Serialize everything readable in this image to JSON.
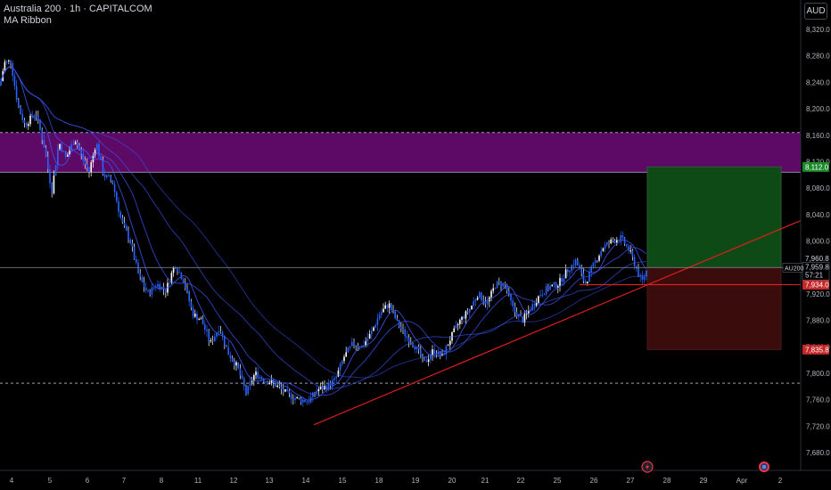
{
  "header": {
    "title": "Australia 200 · 1h · CAPITALCOM",
    "indicator": "MA Ribbon",
    "currency": "AUD"
  },
  "colors": {
    "background": "#000000",
    "candle": "#ffffff",
    "candle_alt": "#2962ff",
    "ma_line": "#3d5afe",
    "zone": "#5c0a66",
    "target_zone": "#0d4a15",
    "stop_zone": "#3a0c0c",
    "trendline": "#e01e1e",
    "entry_line": "#e01e1e",
    "current_price_line": "#787b86",
    "target_label": "#1b8a2a",
    "stop_label": "#c62828"
  },
  "chart_data": {
    "type": "line",
    "symbol": "AU200",
    "interval": "1h",
    "y_ticks": [
      7680,
      7720,
      7760,
      7800,
      7840,
      7880,
      7920,
      7960,
      8000,
      8040,
      8080,
      8120,
      8160,
      8200,
      8240,
      8280,
      8320
    ],
    "y_tick_labels": [
      "7,680.0",
      "7,720.0",
      "7,760.0",
      "7,800.0",
      "7,840.0",
      "7,880.0",
      "7,920.0",
      "7,960.0",
      "8,000.0",
      "8,040.0",
      "8,080.0",
      "8,120.0",
      "8,160.0",
      "8,200.0",
      "8,240.0",
      "8,280.0",
      "8,320.0"
    ],
    "x_tick_labels": [
      "4",
      "5",
      "6",
      "7",
      "8",
      "11",
      "12",
      "13",
      "14",
      "15",
      "18",
      "19",
      "20",
      "21",
      "22",
      "25",
      "26",
      "27",
      "28",
      "29",
      "Apr",
      "2"
    ],
    "ylim": [
      7660,
      8340
    ],
    "price_path": [
      [
        0,
        8235
      ],
      [
        5,
        8270
      ],
      [
        12,
        8272
      ],
      [
        20,
        8205
      ],
      [
        28,
        8175
      ],
      [
        40,
        8195
      ],
      [
        50,
        8140
      ],
      [
        58,
        8075
      ],
      [
        66,
        8150
      ],
      [
        74,
        8125
      ],
      [
        84,
        8155
      ],
      [
        94,
        8120
      ],
      [
        100,
        8105
      ],
      [
        108,
        8150
      ],
      [
        116,
        8100
      ],
      [
        126,
        8090
      ],
      [
        136,
        8030
      ],
      [
        146,
        8000
      ],
      [
        156,
        7945
      ],
      [
        166,
        7920
      ],
      [
        176,
        7935
      ],
      [
        186,
        7925
      ],
      [
        196,
        7965
      ],
      [
        206,
        7940
      ],
      [
        216,
        7890
      ],
      [
        226,
        7880
      ],
      [
        236,
        7845
      ],
      [
        246,
        7870
      ],
      [
        256,
        7830
      ],
      [
        266,
        7810
      ],
      [
        276,
        7770
      ],
      [
        286,
        7800
      ],
      [
        296,
        7790
      ],
      [
        306,
        7785
      ],
      [
        316,
        7775
      ],
      [
        326,
        7765
      ],
      [
        336,
        7760
      ],
      [
        346,
        7758
      ],
      [
        356,
        7775
      ],
      [
        366,
        7780
      ],
      [
        376,
        7790
      ],
      [
        386,
        7825
      ],
      [
        396,
        7845
      ],
      [
        406,
        7840
      ],
      [
        416,
        7860
      ],
      [
        426,
        7890
      ],
      [
        436,
        7905
      ],
      [
        446,
        7875
      ],
      [
        456,
        7855
      ],
      [
        466,
        7840
      ],
      [
        476,
        7815
      ],
      [
        486,
        7835
      ],
      [
        496,
        7825
      ],
      [
        506,
        7855
      ],
      [
        516,
        7880
      ],
      [
        526,
        7895
      ],
      [
        536,
        7920
      ],
      [
        546,
        7905
      ],
      [
        556,
        7935
      ],
      [
        566,
        7935
      ],
      [
        576,
        7895
      ],
      [
        586,
        7880
      ],
      [
        596,
        7900
      ],
      [
        606,
        7920
      ],
      [
        616,
        7930
      ],
      [
        626,
        7935
      ],
      [
        636,
        7955
      ],
      [
        646,
        7970
      ],
      [
        656,
        7935
      ],
      [
        666,
        7965
      ],
      [
        676,
        7990
      ],
      [
        686,
        8000
      ],
      [
        696,
        8005
      ],
      [
        706,
        7985
      ],
      [
        716,
        7950
      ],
      [
        720,
        7938
      ],
      [
        726,
        7959
      ]
    ],
    "current_price": 7959.8,
    "current_price_label": "7,959.8",
    "countdown": "57:21",
    "current_price_tag": "AU200",
    "crosshair_price_label": "7,960.8",
    "entry_price": 7934.0,
    "entry_price_label": "7,934.0",
    "target_price": 8112.0,
    "target_price_label": "8,112.0",
    "stop_price": 7835.8,
    "stop_price_label": "7,835.8",
    "resistance_zone": [
      8104,
      8164
    ],
    "support_level": 7785,
    "zone_top_level": 8164,
    "trendline": [
      [
        352,
        7722
      ],
      [
        900,
        8032
      ]
    ],
    "entry_line_x": [
      650,
      876
    ],
    "position_box_x": [
      726,
      876
    ]
  }
}
